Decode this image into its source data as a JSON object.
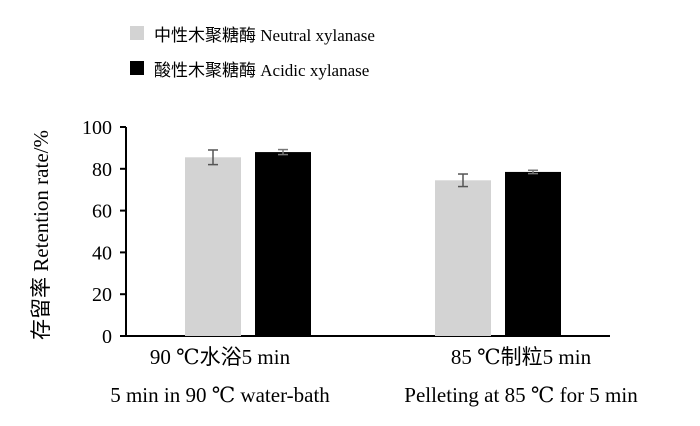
{
  "chart_data": {
    "type": "bar",
    "ylabel": "存留率  Retention rate/%",
    "ylim": [
      0,
      100
    ],
    "yticks": [
      0,
      20,
      40,
      60,
      80,
      100
    ],
    "categories": [
      {
        "cn": "90 ℃水浴5 min",
        "en": "5 min in 90 ℃ water-bath"
      },
      {
        "cn": "85 ℃制粒5 min",
        "en": "Pelleting at 85 ℃ for 5 min"
      }
    ],
    "series": [
      {
        "name": "中性木聚糖酶 Neutral xylanase",
        "color": "#d3d3d3",
        "values": [
          85.5,
          74.5
        ],
        "errors": [
          3.5,
          3.0
        ]
      },
      {
        "name": "酸性木聚糖酶 Acidic xylanase",
        "color": "#000000",
        "values": [
          88.0,
          78.5
        ],
        "errors": [
          1.2,
          0.8
        ]
      }
    ],
    "legend_position": "top-left",
    "grid": false
  }
}
